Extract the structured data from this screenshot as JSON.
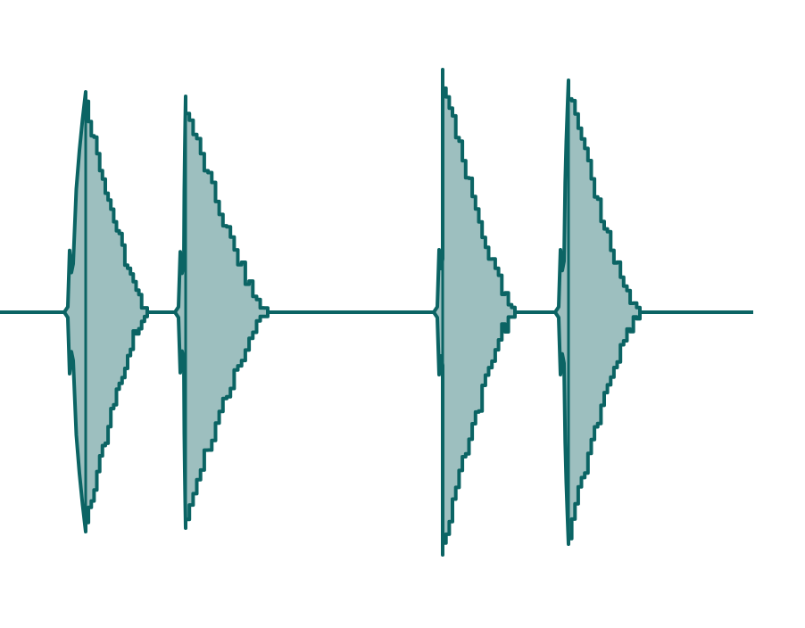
{
  "waveform": {
    "stroke_color": "#0b6464",
    "fill_color": "#9dbfbf",
    "background_color": "#ffffff",
    "burst_count": 4
  }
}
